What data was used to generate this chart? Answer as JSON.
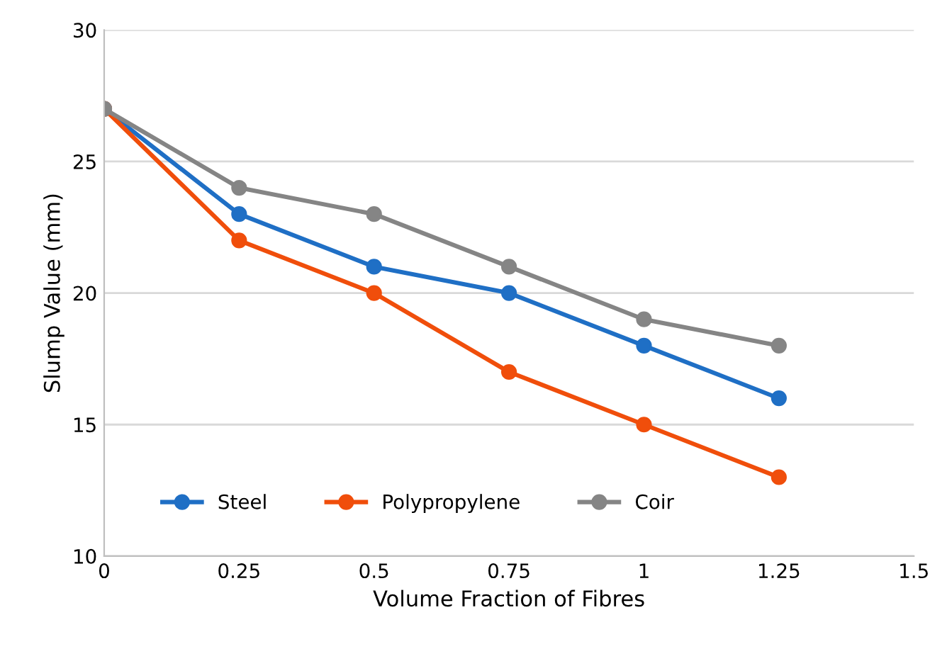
{
  "chart_data": {
    "type": "line",
    "xlabel": "Volume Fraction of Fibres",
    "ylabel": "Slump Value (mm)",
    "x": [
      0,
      0.25,
      0.5,
      0.75,
      1,
      1.25
    ],
    "series": [
      {
        "name": "Steel",
        "color": "#1f6fc5",
        "values": [
          27,
          23,
          21,
          20,
          18,
          16
        ]
      },
      {
        "name": "Polypropylene",
        "color": "#f04e0b",
        "values": [
          27,
          22,
          20,
          17,
          15,
          13
        ]
      },
      {
        "name": "Coir",
        "color": "#858585",
        "values": [
          27,
          24,
          23,
          21,
          19,
          18
        ]
      }
    ],
    "xlim": [
      0,
      1.5
    ],
    "xticks": [
      0,
      0.25,
      0.5,
      0.75,
      1,
      1.25,
      1.5
    ],
    "ylim": [
      10,
      30
    ],
    "yticks": [
      10,
      15,
      20,
      25,
      30
    ],
    "grid": "y",
    "legend": "bottom left",
    "marker": "circle",
    "line_style": "solid"
  }
}
